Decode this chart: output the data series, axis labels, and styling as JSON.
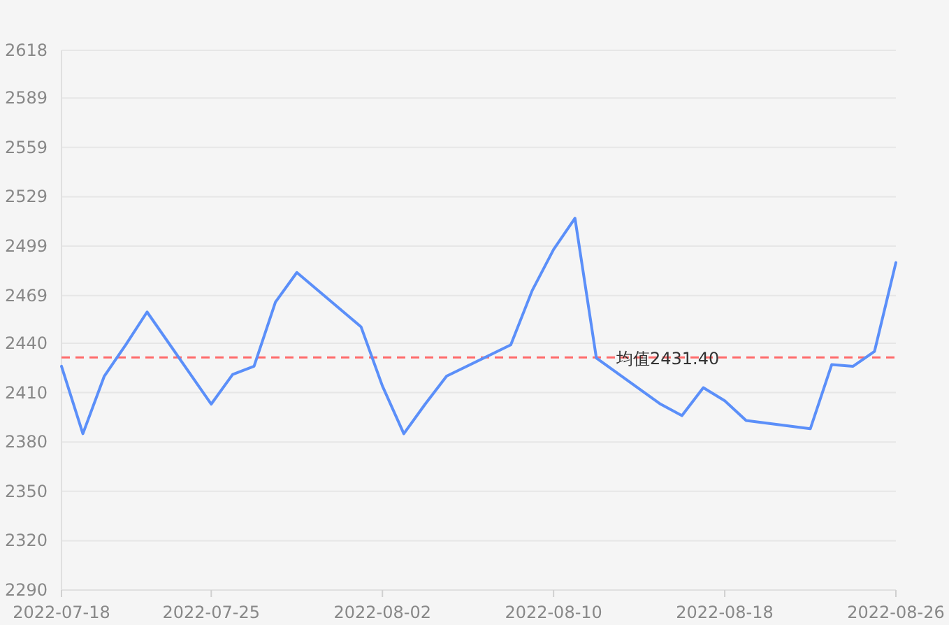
{
  "chart_data": {
    "type": "line",
    "x": [
      "2022-07-18",
      "2022-07-19",
      "2022-07-20",
      "2022-07-21",
      "2022-07-22",
      "2022-07-25",
      "2022-07-26",
      "2022-07-27",
      "2022-07-28",
      "2022-07-29",
      "2022-08-01",
      "2022-08-02",
      "2022-08-03",
      "2022-08-04",
      "2022-08-05",
      "2022-08-08",
      "2022-08-09",
      "2022-08-10",
      "2022-08-11",
      "2022-08-12",
      "2022-08-15",
      "2022-08-16",
      "2022-08-17",
      "2022-08-18",
      "2022-08-19",
      "2022-08-22",
      "2022-08-23",
      "2022-08-24",
      "2022-08-25",
      "2022-08-26"
    ],
    "values": [
      2426,
      2385,
      2420,
      2439,
      2459,
      2403,
      2421,
      2426,
      2465,
      2483,
      2450,
      2414,
      2385,
      2403,
      2420,
      2439,
      2472,
      2497,
      2516,
      2431,
      2403,
      2396,
      2413,
      2405,
      2393,
      2388,
      2427,
      2426,
      2435,
      2489
    ],
    "color": "#5b8ff9",
    "marker": "none",
    "line_style": "solid",
    "xlim": [
      "2022-07-18",
      "2022-08-26"
    ],
    "xticks": [
      {
        "value": "2022-07-18",
        "label": "2022-07-18"
      },
      {
        "value": "2022-07-25",
        "label": "2022-07-25"
      },
      {
        "value": "2022-08-02",
        "label": "2022-08-02"
      },
      {
        "value": "2022-08-10",
        "label": "2022-08-10"
      },
      {
        "value": "2022-08-18",
        "label": "2022-08-18"
      },
      {
        "value": "2022-08-26",
        "label": "2022-08-26"
      }
    ],
    "ylim": [
      2290,
      2618
    ],
    "yticks": [
      2290,
      2320,
      2350,
      2380,
      2410,
      2440,
      2469,
      2499,
      2529,
      2559,
      2589,
      2618
    ],
    "grid": "y",
    "ref_lines": [
      {
        "axis": "y",
        "value": 2431.4,
        "label": "均值2431.40",
        "color": "#ff6b6b",
        "line_style": "dashed"
      }
    ]
  }
}
